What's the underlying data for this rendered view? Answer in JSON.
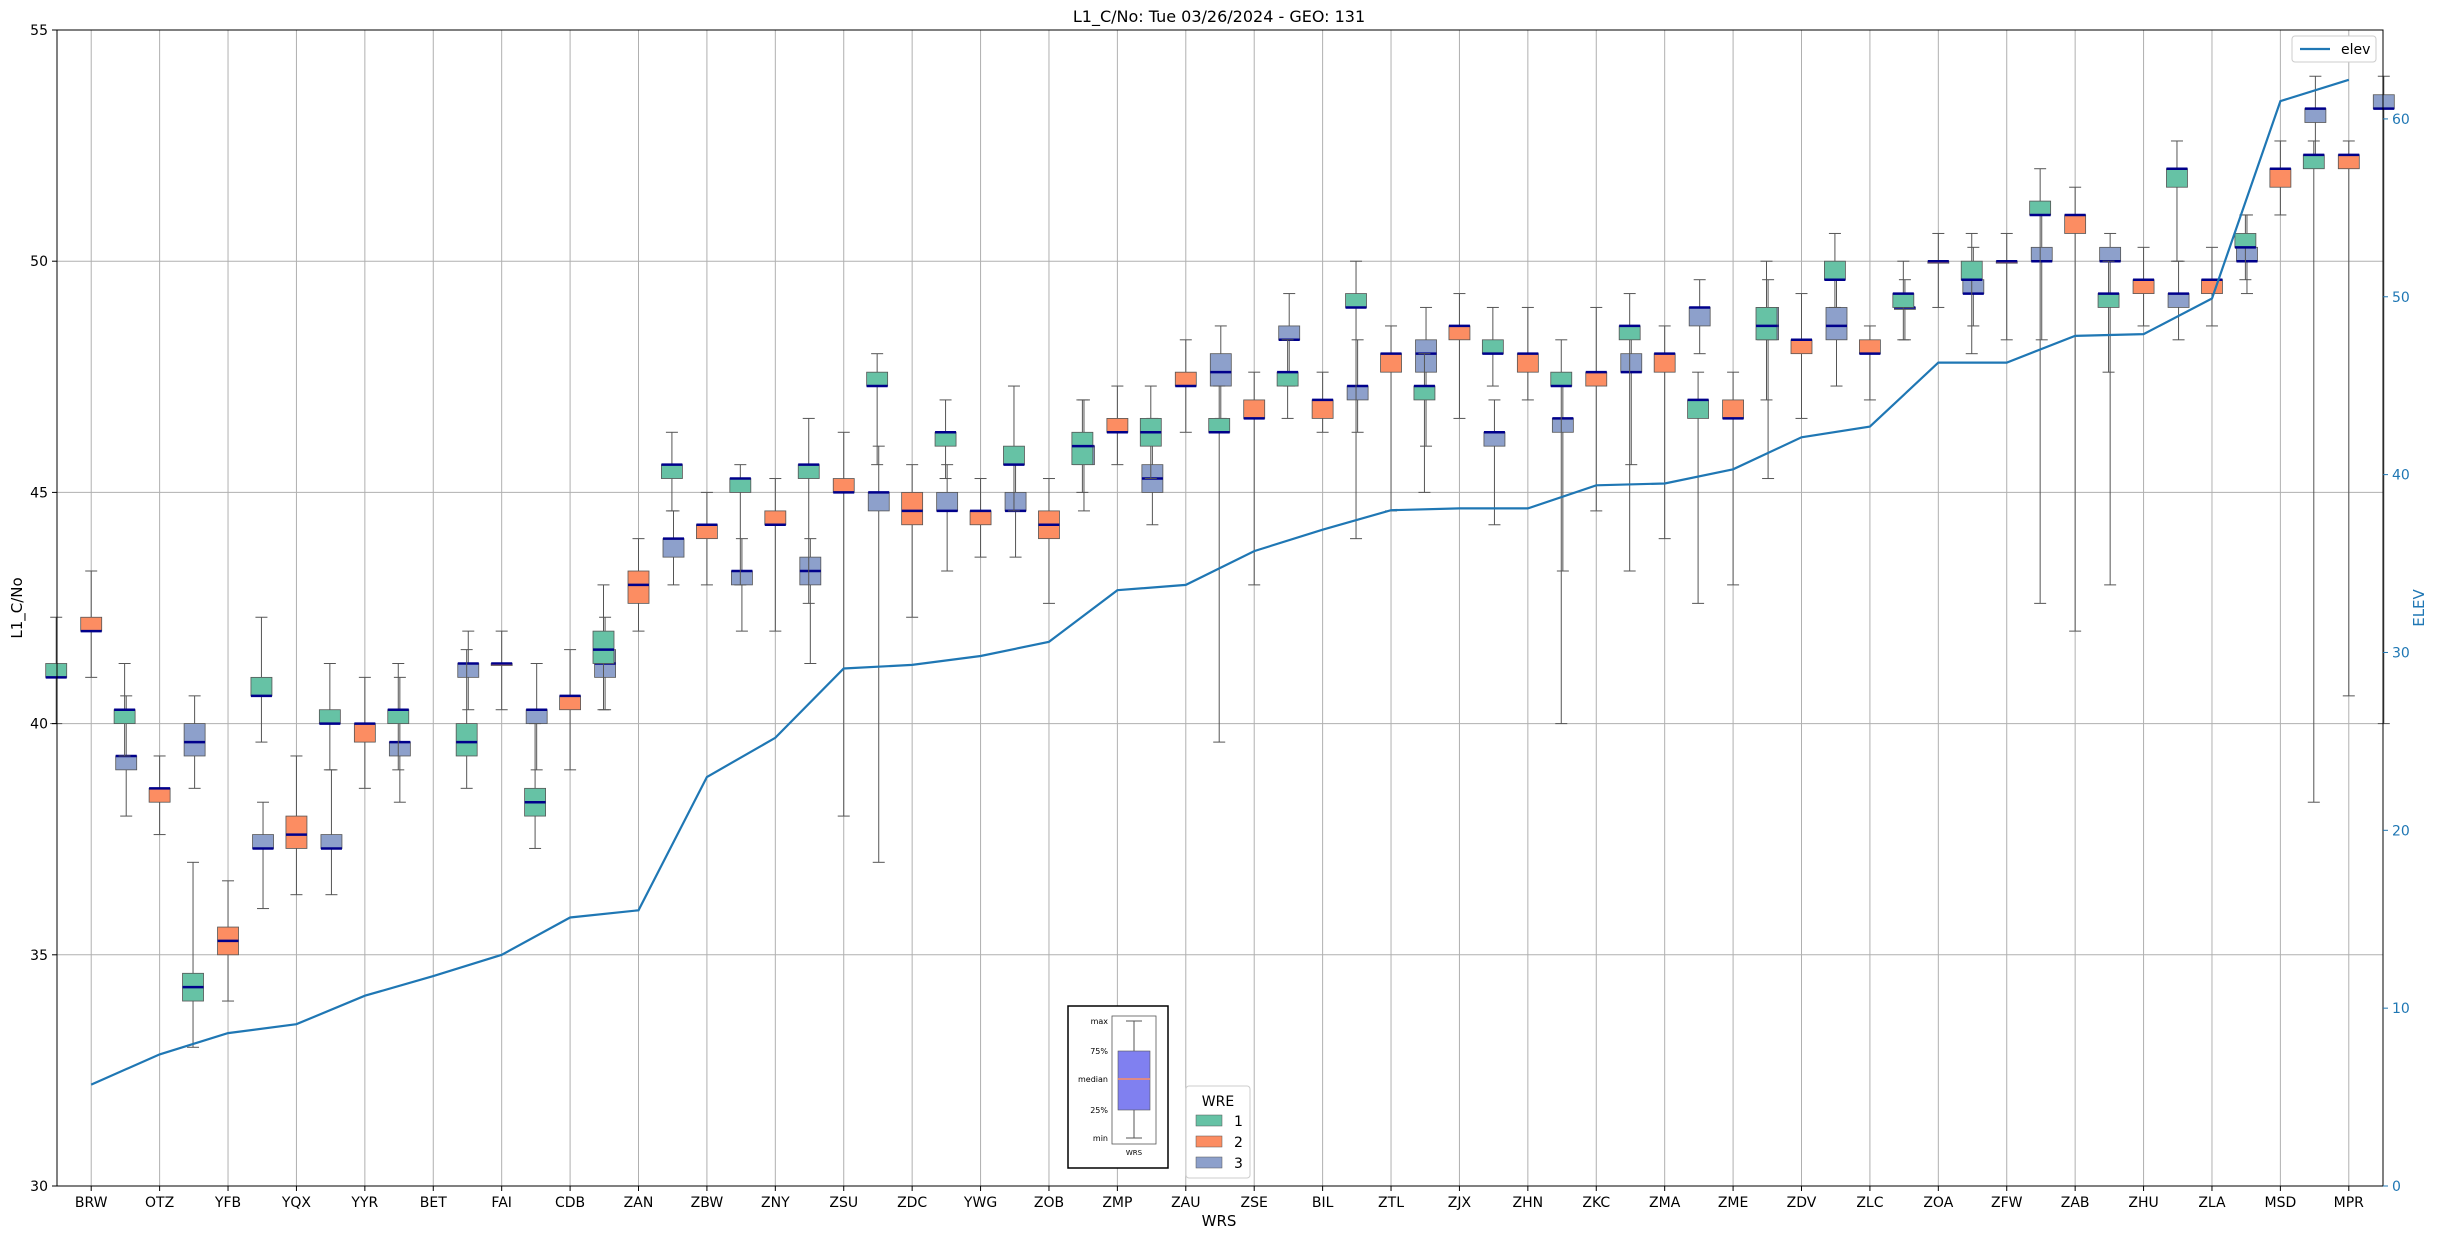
{
  "chart_data": {
    "type": "box",
    "title": "L1_C/No: Tue 03/26/2024 - GEO: 131",
    "xlabel": "WRS",
    "ylabel": "L1_C/No",
    "y2label": "ELEV",
    "ylim": [
      30,
      55
    ],
    "y2lim": [
      0,
      65
    ],
    "yticks": [
      30,
      35,
      40,
      45,
      50,
      55
    ],
    "y2ticks": [
      0,
      10,
      20,
      30,
      40,
      50,
      60
    ],
    "grid": true,
    "colors": {
      "1": "#66c2a5",
      "2": "#fc8d62",
      "3": "#8da0cb",
      "median": "#00008b",
      "elev": "#1f77b4"
    },
    "categories": [
      "BRW",
      "OTZ",
      "YFB",
      "YQX",
      "YYR",
      "BET",
      "FAI",
      "CDB",
      "ZAN",
      "ZBW",
      "ZNY",
      "ZSU",
      "ZDC",
      "YWG",
      "ZOB",
      "ZMP",
      "ZAU",
      "ZSE",
      "BIL",
      "ZTL",
      "ZJX",
      "ZHN",
      "ZKC",
      "ZMA",
      "ZME",
      "ZDV",
      "ZLC",
      "ZOA",
      "ZFW",
      "ZAB",
      "ZHU",
      "ZLA",
      "MSD",
      "MPR"
    ],
    "boxes": [
      {
        "cat": "BRW",
        "wre": 1,
        "min": 40.0,
        "q1": 41.0,
        "med": 41.0,
        "q3": 41.3,
        "max": 42.3
      },
      {
        "cat": "BRW",
        "wre": 2,
        "min": 41.0,
        "q1": 42.0,
        "med": 42.0,
        "q3": 42.3,
        "max": 43.3
      },
      {
        "cat": "BRW",
        "wre": 3,
        "min": 38.0,
        "q1": 39.0,
        "med": 39.3,
        "q3": 39.3,
        "max": 40.6
      },
      {
        "cat": "OTZ",
        "wre": 1,
        "min": 39.3,
        "q1": 40.0,
        "med": 40.3,
        "q3": 40.3,
        "max": 41.3
      },
      {
        "cat": "OTZ",
        "wre": 2,
        "min": 37.6,
        "q1": 38.3,
        "med": 38.6,
        "q3": 38.6,
        "max": 39.3
      },
      {
        "cat": "OTZ",
        "wre": 3,
        "min": 38.6,
        "q1": 39.3,
        "med": 39.6,
        "q3": 40.0,
        "max": 40.6
      },
      {
        "cat": "YFB",
        "wre": 1,
        "min": 33.0,
        "q1": 34.0,
        "med": 34.3,
        "q3": 34.6,
        "max": 37.0
      },
      {
        "cat": "YFB",
        "wre": 2,
        "min": 34.0,
        "q1": 35.0,
        "med": 35.3,
        "q3": 35.6,
        "max": 36.6
      },
      {
        "cat": "YFB",
        "wre": 3,
        "min": 36.0,
        "q1": 37.3,
        "med": 37.3,
        "q3": 37.6,
        "max": 38.3
      },
      {
        "cat": "YQX",
        "wre": 1,
        "min": 39.6,
        "q1": 40.6,
        "med": 40.6,
        "q3": 41.0,
        "max": 42.3
      },
      {
        "cat": "YQX",
        "wre": 2,
        "min": 36.3,
        "q1": 37.3,
        "med": 37.6,
        "q3": 38.0,
        "max": 39.3
      },
      {
        "cat": "YQX",
        "wre": 3,
        "min": 36.3,
        "q1": 37.3,
        "med": 37.3,
        "q3": 37.6,
        "max": 39.0
      },
      {
        "cat": "YYR",
        "wre": 1,
        "min": 39.0,
        "q1": 40.0,
        "med": 40.0,
        "q3": 40.3,
        "max": 41.3
      },
      {
        "cat": "YYR",
        "wre": 2,
        "min": 38.6,
        "q1": 39.6,
        "med": 40.0,
        "q3": 40.0,
        "max": 41.0
      },
      {
        "cat": "YYR",
        "wre": 3,
        "min": 38.3,
        "q1": 39.3,
        "med": 39.6,
        "q3": 39.6,
        "max": 41.0
      },
      {
        "cat": "BET",
        "wre": 1,
        "min": 39.0,
        "q1": 40.0,
        "med": 40.3,
        "q3": 40.3,
        "max": 41.3
      },
      {
        "cat": "BET",
        "wre": 3,
        "min": 40.3,
        "q1": 41.0,
        "med": 41.3,
        "q3": 41.3,
        "max": 42.0
      },
      {
        "cat": "FAI",
        "wre": 1,
        "min": 38.6,
        "q1": 39.3,
        "med": 39.6,
        "q3": 40.0,
        "max": 41.6
      },
      {
        "cat": "FAI",
        "wre": 2,
        "min": 40.3,
        "q1": 41.3,
        "med": 41.3,
        "q3": 41.3,
        "max": 42.0
      },
      {
        "cat": "FAI",
        "wre": 3,
        "min": 39.0,
        "q1": 40.0,
        "med": 40.3,
        "q3": 40.3,
        "max": 41.3
      },
      {
        "cat": "CDB",
        "wre": 1,
        "min": 37.3,
        "q1": 38.0,
        "med": 38.3,
        "q3": 38.6,
        "max": 40.0
      },
      {
        "cat": "CDB",
        "wre": 2,
        "min": 39.0,
        "q1": 40.3,
        "med": 40.6,
        "q3": 40.6,
        "max": 41.6
      },
      {
        "cat": "CDB",
        "wre": 3,
        "min": 40.3,
        "q1": 41.0,
        "med": 41.3,
        "q3": 41.6,
        "max": 42.3
      },
      {
        "cat": "ZAN",
        "wre": 1,
        "min": 40.3,
        "q1": 41.3,
        "med": 41.6,
        "q3": 42.0,
        "max": 43.0
      },
      {
        "cat": "ZAN",
        "wre": 2,
        "min": 42.0,
        "q1": 42.6,
        "med": 43.0,
        "q3": 43.3,
        "max": 44.0
      },
      {
        "cat": "ZAN",
        "wre": 3,
        "min": 43.0,
        "q1": 43.6,
        "med": 44.0,
        "q3": 44.0,
        "max": 44.6
      },
      {
        "cat": "ZBW",
        "wre": 1,
        "min": 44.6,
        "q1": 45.3,
        "med": 45.6,
        "q3": 45.6,
        "max": 46.3
      },
      {
        "cat": "ZBW",
        "wre": 2,
        "min": 43.0,
        "q1": 44.0,
        "med": 44.3,
        "q3": 44.3,
        "max": 45.0
      },
      {
        "cat": "ZBW",
        "wre": 3,
        "min": 42.0,
        "q1": 43.0,
        "med": 43.3,
        "q3": 43.3,
        "max": 44.0
      },
      {
        "cat": "ZNY",
        "wre": 1,
        "min": 43.0,
        "q1": 45.0,
        "med": 45.3,
        "q3": 45.3,
        "max": 45.6
      },
      {
        "cat": "ZNY",
        "wre": 2,
        "min": 42.0,
        "q1": 44.3,
        "med": 44.3,
        "q3": 44.6,
        "max": 45.3
      },
      {
        "cat": "ZNY",
        "wre": 3,
        "min": 41.3,
        "q1": 43.0,
        "med": 43.3,
        "q3": 43.6,
        "max": 44.0
      },
      {
        "cat": "ZSU",
        "wre": 1,
        "min": 42.6,
        "q1": 45.3,
        "med": 45.6,
        "q3": 45.6,
        "max": 46.6
      },
      {
        "cat": "ZSU",
        "wre": 2,
        "min": 38.0,
        "q1": 45.0,
        "med": 45.0,
        "q3": 45.3,
        "max": 46.3
      },
      {
        "cat": "ZSU",
        "wre": 3,
        "min": 37.0,
        "q1": 44.6,
        "med": 45.0,
        "q3": 45.0,
        "max": 46.0
      },
      {
        "cat": "ZDC",
        "wre": 1,
        "min": 45.6,
        "q1": 47.3,
        "med": 47.3,
        "q3": 47.6,
        "max": 48.0
      },
      {
        "cat": "ZDC",
        "wre": 2,
        "min": 42.3,
        "q1": 44.3,
        "med": 44.6,
        "q3": 45.0,
        "max": 45.6
      },
      {
        "cat": "ZDC",
        "wre": 3,
        "min": 43.3,
        "q1": 44.6,
        "med": 44.6,
        "q3": 45.0,
        "max": 45.6
      },
      {
        "cat": "YWG",
        "wre": 1,
        "min": 45.3,
        "q1": 46.0,
        "med": 46.3,
        "q3": 46.3,
        "max": 47.0
      },
      {
        "cat": "YWG",
        "wre": 2,
        "min": 43.6,
        "q1": 44.3,
        "med": 44.6,
        "q3": 44.6,
        "max": 45.3
      },
      {
        "cat": "YWG",
        "wre": 3,
        "min": 43.6,
        "q1": 44.6,
        "med": 44.6,
        "q3": 45.0,
        "max": 45.6
      },
      {
        "cat": "ZOB",
        "wre": 1,
        "min": 44.6,
        "q1": 45.6,
        "med": 45.6,
        "q3": 46.0,
        "max": 47.3
      },
      {
        "cat": "ZOB",
        "wre": 2,
        "min": 42.6,
        "q1": 44.0,
        "med": 44.3,
        "q3": 44.6,
        "max": 45.3
      },
      {
        "cat": "ZOB",
        "wre": 3,
        "min": 44.6,
        "q1": 45.6,
        "med": 46.0,
        "q3": 46.0,
        "max": 47.0
      },
      {
        "cat": "ZMP",
        "wre": 1,
        "min": 45.0,
        "q1": 45.6,
        "med": 46.0,
        "q3": 46.3,
        "max": 47.0
      },
      {
        "cat": "ZMP",
        "wre": 2,
        "min": 45.6,
        "q1": 46.3,
        "med": 46.3,
        "q3": 46.6,
        "max": 47.3
      },
      {
        "cat": "ZMP",
        "wre": 3,
        "min": 44.3,
        "q1": 45.0,
        "med": 45.3,
        "q3": 45.6,
        "max": 46.6
      },
      {
        "cat": "ZAU",
        "wre": 1,
        "min": 45.3,
        "q1": 46.0,
        "med": 46.3,
        "q3": 46.6,
        "max": 47.3
      },
      {
        "cat": "ZAU",
        "wre": 2,
        "min": 46.3,
        "q1": 47.3,
        "med": 47.3,
        "q3": 47.6,
        "max": 48.3
      },
      {
        "cat": "ZAU",
        "wre": 3,
        "min": 46.6,
        "q1": 47.3,
        "med": 47.6,
        "q3": 48.0,
        "max": 48.6
      },
      {
        "cat": "ZSE",
        "wre": 1,
        "min": 39.6,
        "q1": 46.3,
        "med": 46.3,
        "q3": 46.6,
        "max": 47.3
      },
      {
        "cat": "ZSE",
        "wre": 2,
        "min": 43.0,
        "q1": 46.6,
        "med": 46.6,
        "q3": 47.0,
        "max": 47.6
      },
      {
        "cat": "ZSE",
        "wre": 3,
        "min": 47.3,
        "q1": 48.3,
        "med": 48.3,
        "q3": 48.6,
        "max": 49.3
      },
      {
        "cat": "BIL",
        "wre": 1,
        "min": 46.6,
        "q1": 47.3,
        "med": 47.6,
        "q3": 47.6,
        "max": 48.3
      },
      {
        "cat": "BIL",
        "wre": 2,
        "min": 46.3,
        "q1": 46.6,
        "med": 47.0,
        "q3": 47.0,
        "max": 47.6
      },
      {
        "cat": "BIL",
        "wre": 3,
        "min": 46.3,
        "q1": 47.0,
        "med": 47.3,
        "q3": 47.3,
        "max": 48.3
      },
      {
        "cat": "ZTL",
        "wre": 1,
        "min": 44.0,
        "q1": 49.0,
        "med": 49.0,
        "q3": 49.3,
        "max": 50.0
      },
      {
        "cat": "ZTL",
        "wre": 2,
        "min": 44.6,
        "q1": 47.6,
        "med": 48.0,
        "q3": 48.0,
        "max": 48.6
      },
      {
        "cat": "ZTL",
        "wre": 3,
        "min": 46.0,
        "q1": 47.6,
        "med": 48.0,
        "q3": 48.3,
        "max": 49.0
      },
      {
        "cat": "ZJX",
        "wre": 1,
        "min": 45.0,
        "q1": 47.0,
        "med": 47.3,
        "q3": 47.3,
        "max": 48.0
      },
      {
        "cat": "ZJX",
        "wre": 2,
        "min": 46.6,
        "q1": 48.3,
        "med": 48.6,
        "q3": 48.6,
        "max": 49.3
      },
      {
        "cat": "ZJX",
        "wre": 3,
        "min": 44.3,
        "q1": 46.0,
        "med": 46.3,
        "q3": 46.3,
        "max": 47.0
      },
      {
        "cat": "ZHN",
        "wre": 1,
        "min": 47.3,
        "q1": 48.0,
        "med": 48.0,
        "q3": 48.3,
        "max": 49.0
      },
      {
        "cat": "ZHN",
        "wre": 2,
        "min": 47.0,
        "q1": 47.6,
        "med": 48.0,
        "q3": 48.0,
        "max": 49.0
      },
      {
        "cat": "ZHN",
        "wre": 3,
        "min": 43.3,
        "q1": 46.3,
        "med": 46.6,
        "q3": 46.6,
        "max": 47.3
      },
      {
        "cat": "ZKC",
        "wre": 1,
        "min": 40.0,
        "q1": 47.3,
        "med": 47.3,
        "q3": 47.6,
        "max": 48.3
      },
      {
        "cat": "ZKC",
        "wre": 2,
        "min": 44.6,
        "q1": 47.3,
        "med": 47.6,
        "q3": 47.6,
        "max": 49.0
      },
      {
        "cat": "ZKC",
        "wre": 3,
        "min": 45.6,
        "q1": 47.6,
        "med": 47.6,
        "q3": 48.0,
        "max": 48.6
      },
      {
        "cat": "ZMA",
        "wre": 1,
        "min": 43.3,
        "q1": 48.3,
        "med": 48.6,
        "q3": 48.6,
        "max": 49.3
      },
      {
        "cat": "ZMA",
        "wre": 2,
        "min": 44.0,
        "q1": 47.6,
        "med": 48.0,
        "q3": 48.0,
        "max": 48.6
      },
      {
        "cat": "ZMA",
        "wre": 3,
        "min": 48.0,
        "q1": 48.6,
        "med": 49.0,
        "q3": 49.0,
        "max": 49.6
      },
      {
        "cat": "ZME",
        "wre": 1,
        "min": 42.6,
        "q1": 46.6,
        "med": 47.0,
        "q3": 47.0,
        "max": 47.6
      },
      {
        "cat": "ZME",
        "wre": 2,
        "min": 43.0,
        "q1": 46.6,
        "med": 46.6,
        "q3": 47.0,
        "max": 47.6
      },
      {
        "cat": "ZME",
        "wre": 3,
        "min": 45.3,
        "q1": 48.3,
        "med": 48.6,
        "q3": 49.0,
        "max": 49.6
      },
      {
        "cat": "ZDV",
        "wre": 1,
        "min": 47.0,
        "q1": 48.3,
        "med": 48.6,
        "q3": 49.0,
        "max": 50.0
      },
      {
        "cat": "ZDV",
        "wre": 2,
        "min": 46.6,
        "q1": 48.0,
        "med": 48.3,
        "q3": 48.3,
        "max": 49.3
      },
      {
        "cat": "ZDV",
        "wre": 3,
        "min": 47.3,
        "q1": 48.3,
        "med": 48.6,
        "q3": 49.0,
        "max": 49.6
      },
      {
        "cat": "ZLC",
        "wre": 1,
        "min": 49.0,
        "q1": 49.6,
        "med": 49.6,
        "q3": 50.0,
        "max": 50.6
      },
      {
        "cat": "ZLC",
        "wre": 2,
        "min": 47.0,
        "q1": 48.0,
        "med": 48.0,
        "q3": 48.3,
        "max": 48.6
      },
      {
        "cat": "ZLC",
        "wre": 3,
        "min": 48.3,
        "q1": 49.0,
        "med": 49.0,
        "q3": 49.0,
        "max": 49.6
      },
      {
        "cat": "ZOA",
        "wre": 1,
        "min": 48.3,
        "q1": 49.0,
        "med": 49.3,
        "q3": 49.3,
        "max": 50.0
      },
      {
        "cat": "ZOA",
        "wre": 2,
        "min": 49.0,
        "q1": 50.0,
        "med": 50.0,
        "q3": 50.0,
        "max": 50.6
      },
      {
        "cat": "ZOA",
        "wre": 3,
        "min": 48.6,
        "q1": 49.3,
        "med": 49.3,
        "q3": 49.6,
        "max": 50.3
      },
      {
        "cat": "ZFW",
        "wre": 1,
        "min": 48.0,
        "q1": 49.6,
        "med": 49.6,
        "q3": 50.0,
        "max": 50.6
      },
      {
        "cat": "ZFW",
        "wre": 2,
        "min": 48.3,
        "q1": 50.0,
        "med": 50.0,
        "q3": 50.0,
        "max": 50.6
      },
      {
        "cat": "ZFW",
        "wre": 3,
        "min": 48.3,
        "q1": 50.0,
        "med": 50.0,
        "q3": 50.3,
        "max": 51.0
      },
      {
        "cat": "ZAB",
        "wre": 1,
        "min": 42.6,
        "q1": 51.0,
        "med": 51.0,
        "q3": 51.3,
        "max": 52.0
      },
      {
        "cat": "ZAB",
        "wre": 2,
        "min": 42.0,
        "q1": 50.6,
        "med": 51.0,
        "q3": 51.0,
        "max": 51.6
      },
      {
        "cat": "ZAB",
        "wre": 3,
        "min": 43.0,
        "q1": 50.0,
        "med": 50.0,
        "q3": 50.3,
        "max": 50.6
      },
      {
        "cat": "ZHU",
        "wre": 1,
        "min": 47.6,
        "q1": 49.0,
        "med": 49.3,
        "q3": 49.3,
        "max": 50.0
      },
      {
        "cat": "ZHU",
        "wre": 2,
        "min": 48.6,
        "q1": 49.3,
        "med": 49.6,
        "q3": 49.6,
        "max": 50.3
      },
      {
        "cat": "ZHU",
        "wre": 3,
        "min": 48.3,
        "q1": 49.0,
        "med": 49.3,
        "q3": 49.3,
        "max": 50.0
      },
      {
        "cat": "ZLA",
        "wre": 1,
        "min": 50.0,
        "q1": 51.6,
        "med": 52.0,
        "q3": 52.0,
        "max": 52.6
      },
      {
        "cat": "ZLA",
        "wre": 2,
        "min": 48.6,
        "q1": 49.3,
        "med": 49.6,
        "q3": 49.6,
        "max": 50.3
      },
      {
        "cat": "ZLA",
        "wre": 3,
        "min": 49.3,
        "q1": 50.0,
        "med": 50.0,
        "q3": 50.3,
        "max": 51.0
      },
      {
        "cat": "MSD",
        "wre": 1,
        "min": 49.6,
        "q1": 50.3,
        "med": 50.3,
        "q3": 50.6,
        "max": 51.0
      },
      {
        "cat": "MSD",
        "wre": 2,
        "min": 51.0,
        "q1": 51.6,
        "med": 52.0,
        "q3": 52.0,
        "max": 52.6
      },
      {
        "cat": "MSD",
        "wre": 3,
        "min": 52.3,
        "q1": 53.0,
        "med": 53.3,
        "q3": 53.3,
        "max": 54.0
      },
      {
        "cat": "MPR",
        "wre": 1,
        "min": 38.3,
        "q1": 52.0,
        "med": 52.3,
        "q3": 52.3,
        "max": 52.6
      },
      {
        "cat": "MPR",
        "wre": 2,
        "min": 40.6,
        "q1": 52.0,
        "med": 52.3,
        "q3": 52.3,
        "max": 52.6
      },
      {
        "cat": "MPR",
        "wre": 3,
        "min": 40.0,
        "q1": 53.3,
        "med": 53.3,
        "q3": 53.6,
        "max": 54.0
      }
    ],
    "elev": {
      "name": "elev",
      "values": [
        5.7,
        7.4,
        8.6,
        9.1,
        10.7,
        11.8,
        13.0,
        15.1,
        15.5,
        23.0,
        25.2,
        29.1,
        29.3,
        29.8,
        30.6,
        33.5,
        33.8,
        35.7,
        36.9,
        38.0,
        38.1,
        38.1,
        39.4,
        39.5,
        40.3,
        42.1,
        42.7,
        46.3,
        46.3,
        47.8,
        47.9,
        49.9,
        61.0,
        62.2
      ]
    },
    "legend_wre": {
      "title": "WRE",
      "entries": [
        "1",
        "2",
        "3"
      ],
      "placement": "bottom-center"
    },
    "legend_elev": {
      "entries": [
        "elev"
      ],
      "placement": "top-right"
    },
    "key_box": {
      "labels": [
        "max",
        "75%",
        "median",
        "25%",
        "min"
      ],
      "xlabel": "WRS",
      "fill": "#8080f0",
      "median_color": "#fc8d62"
    }
  }
}
